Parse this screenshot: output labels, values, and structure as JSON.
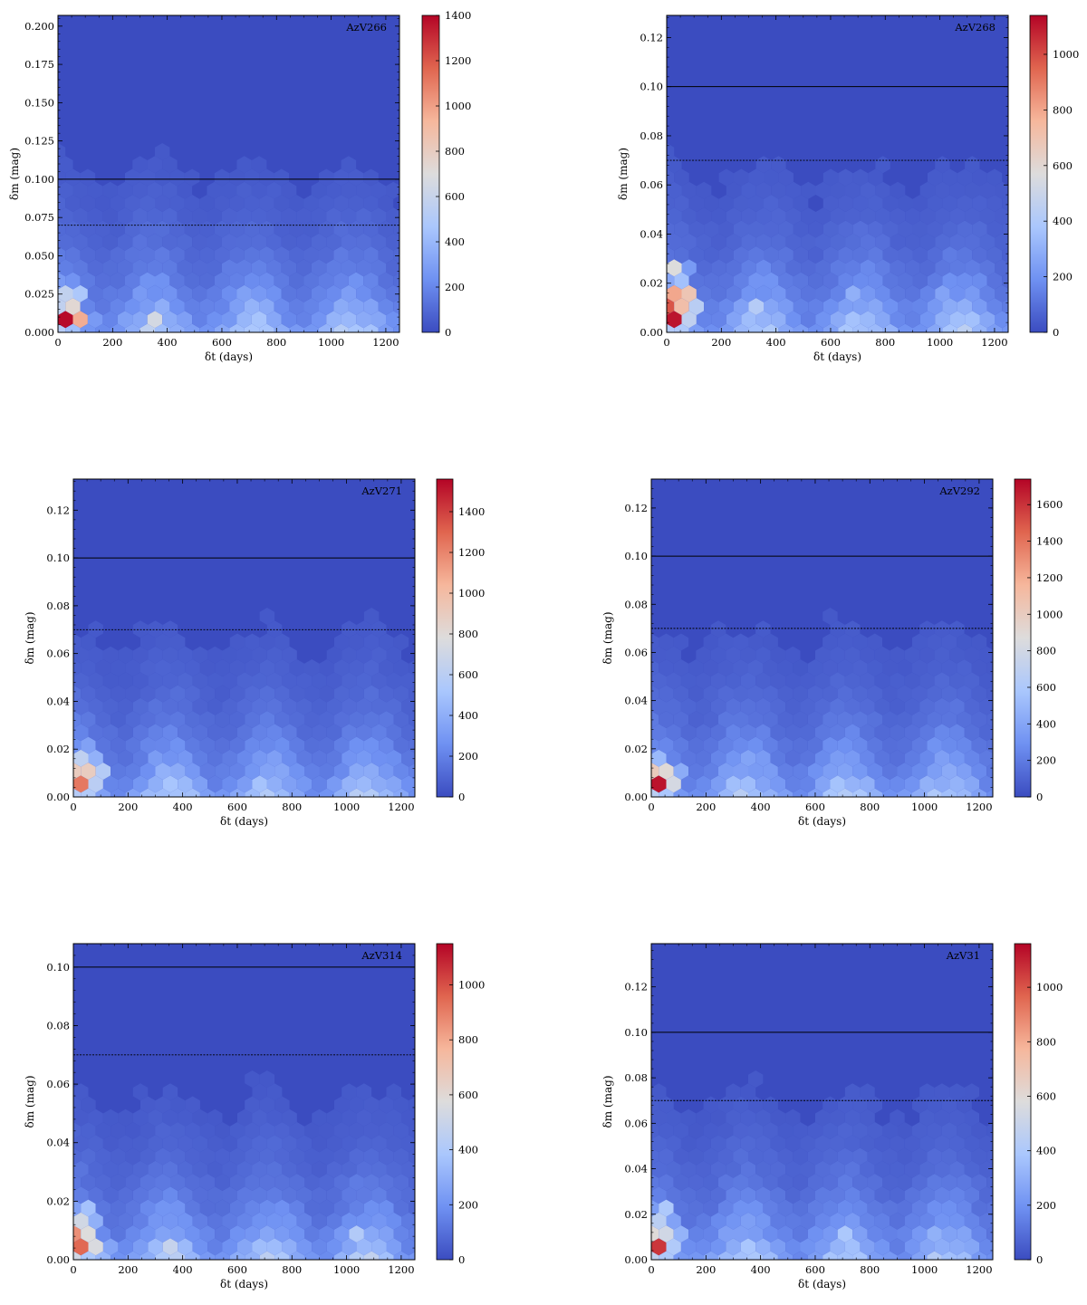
{
  "figure": {
    "colormap": [
      "#3b4cc0",
      "#6f91f2",
      "#aac7fd",
      "#dddcdc",
      "#f6b79c",
      "#e0654f",
      "#b40426"
    ],
    "background_color": "#3b4cc0",
    "reference_lines": [
      {
        "y": 0.1,
        "style": "solid"
      },
      {
        "y": 0.07,
        "style": "dotted"
      }
    ]
  },
  "chart_data": [
    {
      "type": "heatmap",
      "title": "AzV266",
      "xlabel": "δt (days)",
      "ylabel": "δm (mag)",
      "xlim": [
        0,
        1250
      ],
      "ylim": [
        0,
        0.207
      ],
      "xticks": [
        0,
        200,
        400,
        600,
        800,
        1000,
        1200
      ],
      "yticks": [
        0.0,
        0.025,
        0.05,
        0.075,
        0.1,
        0.125,
        0.15,
        0.175,
        0.2
      ],
      "ytick_labels": [
        "0.000",
        "0.025",
        "0.050",
        "0.075",
        "0.100",
        "0.125",
        "0.150",
        "0.175",
        "0.200"
      ],
      "colorbar": {
        "min": 0,
        "max": 1400,
        "ticks": [
          0,
          200,
          400,
          600,
          800,
          1000,
          1200,
          1400
        ]
      },
      "hot_spots": [
        {
          "x": 20,
          "y": 0.006,
          "count": 1400
        },
        {
          "x": 45,
          "y": 0.01,
          "count": 1050
        },
        {
          "x": 80,
          "y": 0.008,
          "count": 900
        },
        {
          "x": 30,
          "y": 0.018,
          "count": 900
        },
        {
          "x": 60,
          "y": 0.022,
          "count": 700
        },
        {
          "x": 25,
          "y": 0.028,
          "count": 650
        },
        {
          "x": 370,
          "y": 0.008,
          "count": 650
        },
        {
          "x": 710,
          "y": 0.008,
          "count": 550
        },
        {
          "x": 1030,
          "y": 0.008,
          "count": 450
        }
      ]
    },
    {
      "type": "heatmap",
      "title": "AzV268",
      "xlabel": "δt (days)",
      "ylabel": "δm (mag)",
      "xlim": [
        0,
        1250
      ],
      "ylim": [
        0,
        0.129
      ],
      "xticks": [
        0,
        200,
        400,
        600,
        800,
        1000,
        1200
      ],
      "yticks": [
        0.0,
        0.02,
        0.04,
        0.06,
        0.08,
        0.1,
        0.12
      ],
      "ytick_labels": [
        "0.00",
        "0.02",
        "0.04",
        "0.06",
        "0.08",
        "0.10",
        "0.12"
      ],
      "colorbar": {
        "min": 0,
        "max": 1140,
        "ticks": [
          0,
          200,
          400,
          600,
          800,
          1000
        ]
      },
      "hot_spots": [
        {
          "x": 20,
          "y": 0.004,
          "count": 1140
        },
        {
          "x": 20,
          "y": 0.012,
          "count": 1100
        },
        {
          "x": 50,
          "y": 0.008,
          "count": 950
        },
        {
          "x": 50,
          "y": 0.016,
          "count": 850
        },
        {
          "x": 80,
          "y": 0.012,
          "count": 750
        },
        {
          "x": 30,
          "y": 0.024,
          "count": 650
        },
        {
          "x": 340,
          "y": 0.012,
          "count": 450
        },
        {
          "x": 700,
          "y": 0.016,
          "count": 350
        },
        {
          "x": 1030,
          "y": 0.016,
          "count": 320
        }
      ]
    },
    {
      "type": "heatmap",
      "title": "AzV271",
      "xlabel": "δt (days)",
      "ylabel": "δm (mag)",
      "xlim": [
        0,
        1250
      ],
      "ylim": [
        0,
        0.133
      ],
      "xticks": [
        0,
        200,
        400,
        600,
        800,
        1000,
        1200
      ],
      "yticks": [
        0.0,
        0.02,
        0.04,
        0.06,
        0.08,
        0.1,
        0.12
      ],
      "ytick_labels": [
        "0.00",
        "0.02",
        "0.04",
        "0.06",
        "0.08",
        "0.10",
        "0.12"
      ],
      "colorbar": {
        "min": 0,
        "max": 1560,
        "ticks": [
          0,
          200,
          400,
          600,
          800,
          1000,
          1200,
          1400
        ]
      },
      "hot_spots": [
        {
          "x": 20,
          "y": 0.004,
          "count": 1560
        },
        {
          "x": 50,
          "y": 0.008,
          "count": 1150
        },
        {
          "x": 20,
          "y": 0.012,
          "count": 1050
        },
        {
          "x": 80,
          "y": 0.012,
          "count": 850
        },
        {
          "x": 40,
          "y": 0.018,
          "count": 750
        },
        {
          "x": 360,
          "y": 0.008,
          "count": 650
        },
        {
          "x": 720,
          "y": 0.008,
          "count": 600
        },
        {
          "x": 1050,
          "y": 0.008,
          "count": 550
        }
      ]
    },
    {
      "type": "heatmap",
      "title": "AzV292",
      "xlabel": "δt (days)",
      "ylabel": "δm (mag)",
      "xlim": [
        0,
        1250
      ],
      "ylim": [
        0,
        0.132
      ],
      "xticks": [
        0,
        200,
        400,
        600,
        800,
        1000,
        1200
      ],
      "yticks": [
        0.0,
        0.02,
        0.04,
        0.06,
        0.08,
        0.1,
        0.12
      ],
      "ytick_labels": [
        "0.00",
        "0.02",
        "0.04",
        "0.06",
        "0.08",
        "0.10",
        "0.12"
      ],
      "colorbar": {
        "min": 0,
        "max": 1740,
        "ticks": [
          0,
          200,
          400,
          600,
          800,
          1000,
          1200,
          1400,
          1600
        ]
      },
      "hot_spots": [
        {
          "x": 20,
          "y": 0.004,
          "count": 1740
        },
        {
          "x": 50,
          "y": 0.004,
          "count": 1350
        },
        {
          "x": 40,
          "y": 0.008,
          "count": 1300
        },
        {
          "x": 20,
          "y": 0.012,
          "count": 1100
        },
        {
          "x": 80,
          "y": 0.008,
          "count": 950
        },
        {
          "x": 330,
          "y": 0.006,
          "count": 700
        },
        {
          "x": 700,
          "y": 0.006,
          "count": 600
        },
        {
          "x": 1080,
          "y": 0.006,
          "count": 550
        }
      ]
    },
    {
      "type": "heatmap",
      "title": "AzV314",
      "xlabel": "δt (days)",
      "ylabel": "δm (mag)",
      "xlim": [
        0,
        1250
      ],
      "ylim": [
        0,
        0.108
      ],
      "xticks": [
        0,
        200,
        400,
        600,
        800,
        1000,
        1200
      ],
      "yticks": [
        0.0,
        0.02,
        0.04,
        0.06,
        0.08,
        0.1
      ],
      "ytick_labels": [
        "0.00",
        "0.02",
        "0.04",
        "0.06",
        "0.08",
        "0.10"
      ],
      "colorbar": {
        "min": 0,
        "max": 1150,
        "ticks": [
          0,
          200,
          400,
          600,
          800,
          1000
        ]
      },
      "hot_spots": [
        {
          "x": 20,
          "y": 0.003,
          "count": 1150
        },
        {
          "x": 20,
          "y": 0.009,
          "count": 950
        },
        {
          "x": 50,
          "y": 0.006,
          "count": 900
        },
        {
          "x": 80,
          "y": 0.003,
          "count": 750
        },
        {
          "x": 40,
          "y": 0.015,
          "count": 650
        },
        {
          "x": 350,
          "y": 0.006,
          "count": 550
        },
        {
          "x": 700,
          "y": 0.006,
          "count": 480
        },
        {
          "x": 1050,
          "y": 0.008,
          "count": 420
        }
      ]
    },
    {
      "type": "heatmap",
      "title": "AzV31",
      "xlabel": "δt (days)",
      "ylabel": "δm (mag)",
      "xlim": [
        0,
        1250
      ],
      "ylim": [
        0,
        0.139
      ],
      "xticks": [
        0,
        200,
        400,
        600,
        800,
        1000,
        1200
      ],
      "yticks": [
        0.0,
        0.02,
        0.04,
        0.06,
        0.08,
        0.1,
        0.12
      ],
      "ytick_labels": [
        "0.00",
        "0.02",
        "0.04",
        "0.06",
        "0.08",
        "0.10",
        "0.12"
      ],
      "colorbar": {
        "min": 0,
        "max": 1160,
        "ticks": [
          0,
          200,
          400,
          600,
          800,
          1000
        ]
      },
      "hot_spots": [
        {
          "x": 20,
          "y": 0.004,
          "count": 1160
        },
        {
          "x": 50,
          "y": 0.008,
          "count": 800
        },
        {
          "x": 20,
          "y": 0.012,
          "count": 700
        },
        {
          "x": 40,
          "y": 0.02,
          "count": 600
        },
        {
          "x": 80,
          "y": 0.012,
          "count": 500
        },
        {
          "x": 700,
          "y": 0.01,
          "count": 480
        },
        {
          "x": 360,
          "y": 0.008,
          "count": 400
        },
        {
          "x": 1020,
          "y": 0.01,
          "count": 380
        }
      ]
    }
  ]
}
